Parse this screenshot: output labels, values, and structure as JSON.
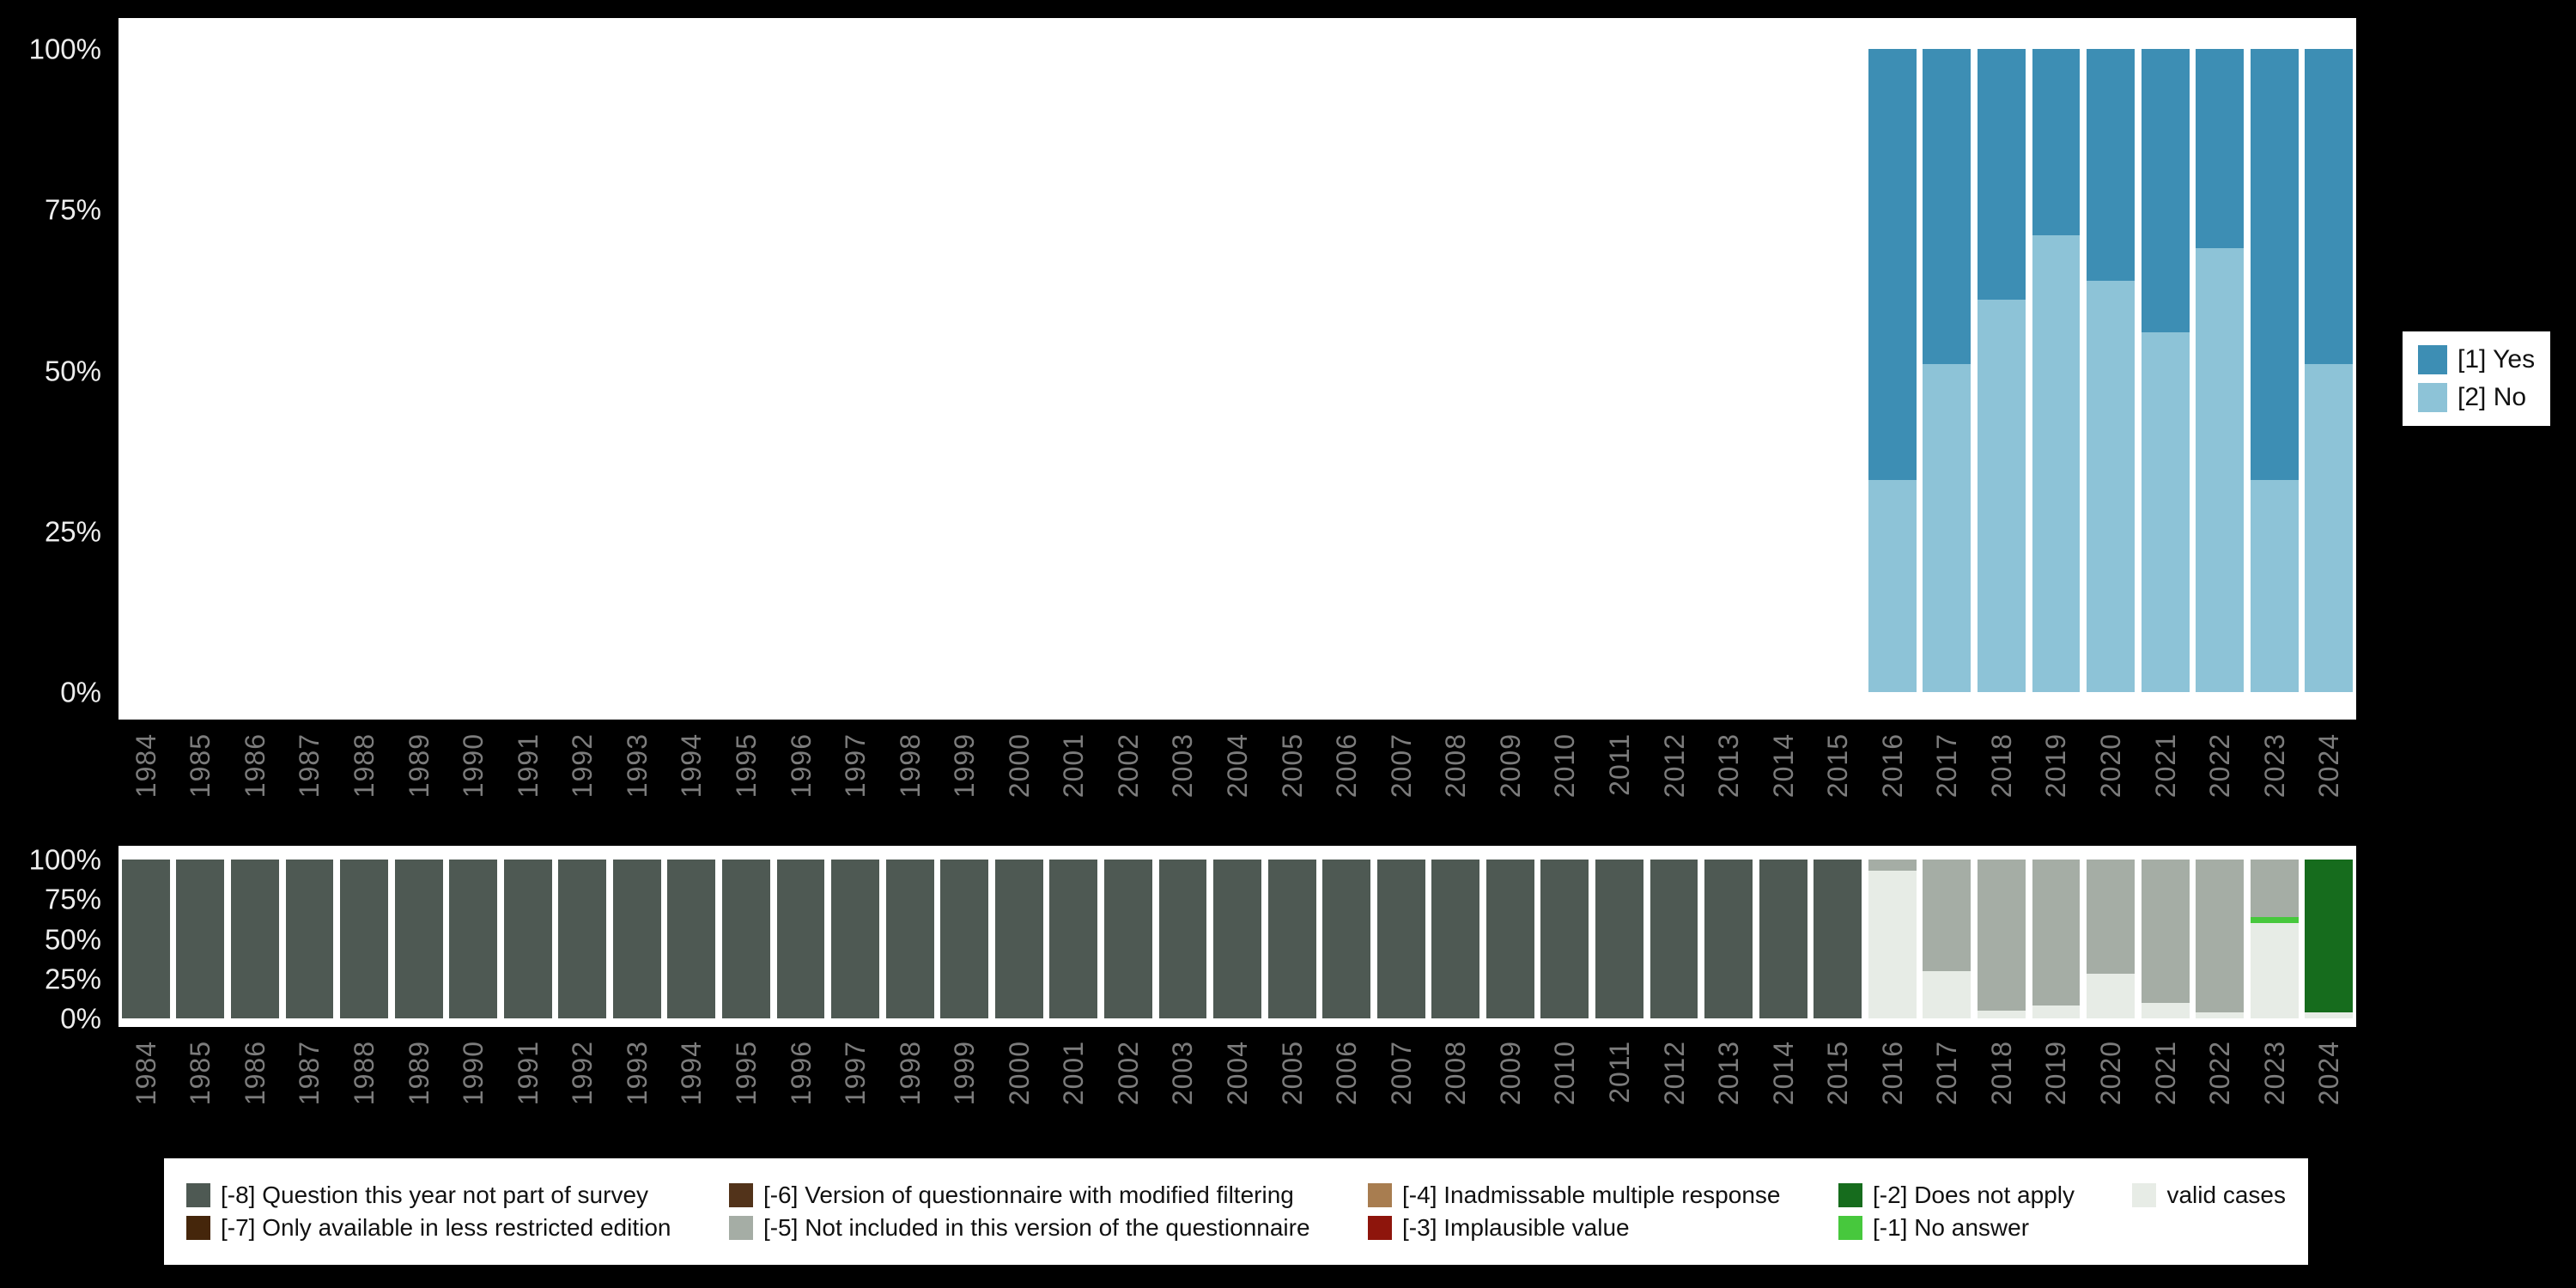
{
  "colors": {
    "background": "#000000",
    "panel": "#ffffff",
    "tick_text": "#ededed",
    "year_text": "#7c7c7c",
    "legend_text": "#111111"
  },
  "y_ticks": [
    "100%",
    "75%",
    "50%",
    "25%",
    "0%"
  ],
  "years": [
    "1984",
    "1985",
    "1986",
    "1987",
    "1988",
    "1989",
    "1990",
    "1991",
    "1992",
    "1993",
    "1994",
    "1995",
    "1996",
    "1997",
    "1998",
    "1999",
    "2000",
    "2001",
    "2002",
    "2003",
    "2004",
    "2005",
    "2006",
    "2007",
    "2008",
    "2009",
    "2010",
    "2011",
    "2012",
    "2013",
    "2014",
    "2015",
    "2016",
    "2017",
    "2018",
    "2019",
    "2020",
    "2021",
    "2022",
    "2023",
    "2024"
  ],
  "answers_legend": {
    "items": [
      {
        "label": "[1] Yes",
        "color": "#3d8eb4"
      },
      {
        "label": "[2] No",
        "color": "#8dc3d7"
      }
    ]
  },
  "missing_legend": {
    "columns": [
      [
        {
          "label": "[-8] Question this year not part of survey",
          "color": "#4e5953"
        },
        {
          "label": "[-7] Only available in less restricted edition",
          "color": "#45260b"
        }
      ],
      [
        {
          "label": "[-6] Version of questionnaire with modified filtering",
          "color": "#52331a"
        },
        {
          "label": "[-5] Not included in this version of the questionnaire",
          "color": "#a5ada5"
        }
      ],
      [
        {
          "label": "[-4] Inadmissable multiple response",
          "color": "#a87d50"
        },
        {
          "label": "[-3] Implausible value",
          "color": "#8e150c"
        }
      ],
      [
        {
          "label": "[-2] Does not apply",
          "color": "#166c1d"
        },
        {
          "label": "[-1] No answer",
          "color": "#47c83d"
        }
      ],
      [
        {
          "label": "valid cases",
          "color": "#e7ece6"
        }
      ]
    ]
  },
  "chart_data": [
    {
      "type": "bar",
      "stacked": true,
      "unit": "percent",
      "ylim": [
        0,
        100
      ],
      "y_ticks": [
        "100%",
        "75%",
        "50%",
        "25%",
        "0%"
      ],
      "legend_position": "right",
      "categories": [
        "1984",
        "1985",
        "1986",
        "1987",
        "1988",
        "1989",
        "1990",
        "1991",
        "1992",
        "1993",
        "1994",
        "1995",
        "1996",
        "1997",
        "1998",
        "1999",
        "2000",
        "2001",
        "2002",
        "2003",
        "2004",
        "2005",
        "2006",
        "2007",
        "2008",
        "2009",
        "2010",
        "2011",
        "2012",
        "2013",
        "2014",
        "2015",
        "2016",
        "2017",
        "2018",
        "2019",
        "2020",
        "2021",
        "2022",
        "2023",
        "2024"
      ],
      "series": [
        {
          "name": "[2] No",
          "color": "#8dc3d7",
          "values": [
            null,
            null,
            null,
            null,
            null,
            null,
            null,
            null,
            null,
            null,
            null,
            null,
            null,
            null,
            null,
            null,
            null,
            null,
            null,
            null,
            null,
            null,
            null,
            null,
            null,
            null,
            null,
            null,
            null,
            null,
            null,
            null,
            33,
            51,
            61,
            71,
            64,
            56,
            69,
            33,
            51
          ]
        },
        {
          "name": "[1] Yes",
          "color": "#3d8eb4",
          "values": [
            null,
            null,
            null,
            null,
            null,
            null,
            null,
            null,
            null,
            null,
            null,
            null,
            null,
            null,
            null,
            null,
            null,
            null,
            null,
            null,
            null,
            null,
            null,
            null,
            null,
            null,
            null,
            null,
            null,
            null,
            null,
            null,
            67,
            49,
            39,
            29,
            36,
            44,
            31,
            67,
            49
          ]
        }
      ]
    },
    {
      "type": "bar",
      "stacked": true,
      "unit": "percent",
      "ylim": [
        0,
        100
      ],
      "y_ticks": [
        "100%",
        "75%",
        "50%",
        "25%",
        "0%"
      ],
      "legend_position": "bottom",
      "categories": [
        "1984",
        "1985",
        "1986",
        "1987",
        "1988",
        "1989",
        "1990",
        "1991",
        "1992",
        "1993",
        "1994",
        "1995",
        "1996",
        "1997",
        "1998",
        "1999",
        "2000",
        "2001",
        "2002",
        "2003",
        "2004",
        "2005",
        "2006",
        "2007",
        "2008",
        "2009",
        "2010",
        "2011",
        "2012",
        "2013",
        "2014",
        "2015",
        "2016",
        "2017",
        "2018",
        "2019",
        "2020",
        "2021",
        "2022",
        "2023",
        "2024"
      ],
      "series": [
        {
          "name": "valid cases",
          "color": "#e7ece6",
          "values": [
            0,
            0,
            0,
            0,
            0,
            0,
            0,
            0,
            0,
            0,
            0,
            0,
            0,
            0,
            0,
            0,
            0,
            0,
            0,
            0,
            0,
            0,
            0,
            0,
            0,
            0,
            0,
            0,
            0,
            0,
            0,
            0,
            93,
            30,
            5,
            8,
            28,
            10,
            4,
            60,
            4
          ]
        },
        {
          "name": "[-1] No answer",
          "color": "#47c83d",
          "values": [
            0,
            0,
            0,
            0,
            0,
            0,
            0,
            0,
            0,
            0,
            0,
            0,
            0,
            0,
            0,
            0,
            0,
            0,
            0,
            0,
            0,
            0,
            0,
            0,
            0,
            0,
            0,
            0,
            0,
            0,
            0,
            0,
            0,
            0,
            0,
            0,
            0,
            0,
            0,
            4,
            0
          ]
        },
        {
          "name": "[-2] Does not apply",
          "color": "#166c1d",
          "values": [
            0,
            0,
            0,
            0,
            0,
            0,
            0,
            0,
            0,
            0,
            0,
            0,
            0,
            0,
            0,
            0,
            0,
            0,
            0,
            0,
            0,
            0,
            0,
            0,
            0,
            0,
            0,
            0,
            0,
            0,
            0,
            0,
            0,
            0,
            0,
            0,
            0,
            0,
            0,
            0,
            96
          ]
        },
        {
          "name": "[-5] Not included in this version of the questionnaire",
          "color": "#a5ada5",
          "values": [
            0,
            0,
            0,
            0,
            0,
            0,
            0,
            0,
            0,
            0,
            0,
            0,
            0,
            0,
            0,
            0,
            0,
            0,
            0,
            0,
            0,
            0,
            0,
            0,
            0,
            0,
            0,
            0,
            0,
            0,
            0,
            0,
            7,
            70,
            95,
            92,
            72,
            90,
            96,
            36,
            0
          ]
        },
        {
          "name": "[-8] Question this year not part of survey",
          "color": "#4e5953",
          "values": [
            100,
            100,
            100,
            100,
            100,
            100,
            100,
            100,
            100,
            100,
            100,
            100,
            100,
            100,
            100,
            100,
            100,
            100,
            100,
            100,
            100,
            100,
            100,
            100,
            100,
            100,
            100,
            100,
            100,
            100,
            100,
            100,
            0,
            0,
            0,
            0,
            0,
            0,
            0,
            0,
            0
          ]
        }
      ]
    }
  ]
}
